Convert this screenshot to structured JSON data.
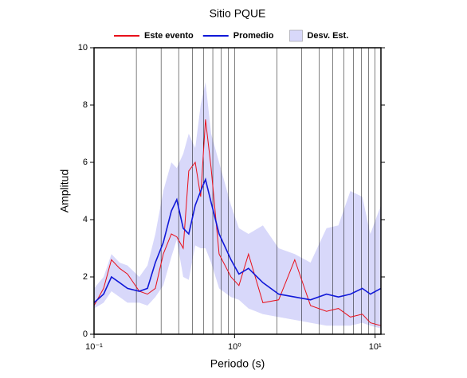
{
  "chart_data": {
    "type": "line",
    "title": "Sitio PQUE",
    "x_label": "Periodo (s)",
    "y_label": "Amplitud",
    "x_scale": "log",
    "xlim": [
      0.1,
      11
    ],
    "ylim": [
      0,
      10
    ],
    "xticks": [
      {
        "value": 0.1,
        "label": "10⁻¹"
      },
      {
        "value": 1,
        "label": "10⁰"
      },
      {
        "value": 10,
        "label": "10¹"
      }
    ],
    "xgrid": [
      0.1,
      0.2,
      0.3,
      0.4,
      0.5,
      0.6,
      0.7,
      0.8,
      0.9,
      1,
      2,
      3,
      4,
      5,
      6,
      7,
      8,
      9,
      10
    ],
    "yticks": [
      0,
      2,
      4,
      6,
      8,
      10
    ],
    "x": [
      0.1,
      0.117,
      0.133,
      0.152,
      0.173,
      0.21,
      0.24,
      0.273,
      0.311,
      0.355,
      0.388,
      0.431,
      0.472,
      0.525,
      0.574,
      0.621,
      0.681,
      0.776,
      0.943,
      1.074,
      1.256,
      1.59,
      2.06,
      2.68,
      3.47,
      4.51,
      5.48,
      6.67,
      8.11,
      9.25,
      11
    ],
    "band": {
      "name": "Desv. Est.",
      "color": "#d8d8fa",
      "high": [
        1.6,
        2.0,
        2.8,
        2.5,
        2.4,
        2.0,
        2.4,
        3.5,
        5.0,
        6.0,
        5.8,
        6.3,
        7.0,
        6.5,
        8.0,
        8.8,
        7.0,
        6.0,
        4.5,
        3.7,
        3.5,
        3.8,
        3.0,
        2.8,
        2.5,
        3.7,
        3.8,
        5.0,
        4.8,
        3.5,
        4.5
      ],
      "low": [
        0.9,
        1.1,
        1.5,
        1.3,
        1.1,
        1.1,
        1.0,
        1.3,
        1.7,
        2.7,
        3.3,
        2.0,
        1.9,
        3.1,
        3.0,
        3.0,
        2.5,
        1.6,
        1.3,
        1.2,
        0.9,
        0.7,
        0.6,
        0.5,
        0.4,
        0.3,
        0.3,
        0.3,
        0.4,
        0.3,
        0.2
      ]
    },
    "series": [
      {
        "name": "Este evento",
        "color": "#e8101a",
        "values": [
          1.0,
          1.6,
          2.6,
          2.3,
          2.1,
          1.5,
          1.4,
          1.6,
          2.8,
          3.5,
          3.4,
          3.0,
          5.7,
          6.0,
          4.8,
          7.5,
          5.8,
          2.8,
          2.0,
          1.7,
          2.8,
          1.1,
          1.2,
          2.6,
          1.0,
          0.8,
          0.9,
          0.6,
          0.7,
          0.4,
          0.3
        ]
      },
      {
        "name": "Promedio",
        "color": "#1018d8",
        "values": [
          1.1,
          1.4,
          2.0,
          1.8,
          1.6,
          1.5,
          1.6,
          2.5,
          3.2,
          4.3,
          4.7,
          3.7,
          3.5,
          4.5,
          5.0,
          5.4,
          4.6,
          3.5,
          2.6,
          2.1,
          2.3,
          1.8,
          1.4,
          1.3,
          1.2,
          1.4,
          1.3,
          1.4,
          1.6,
          1.4,
          1.6
        ]
      }
    ]
  }
}
